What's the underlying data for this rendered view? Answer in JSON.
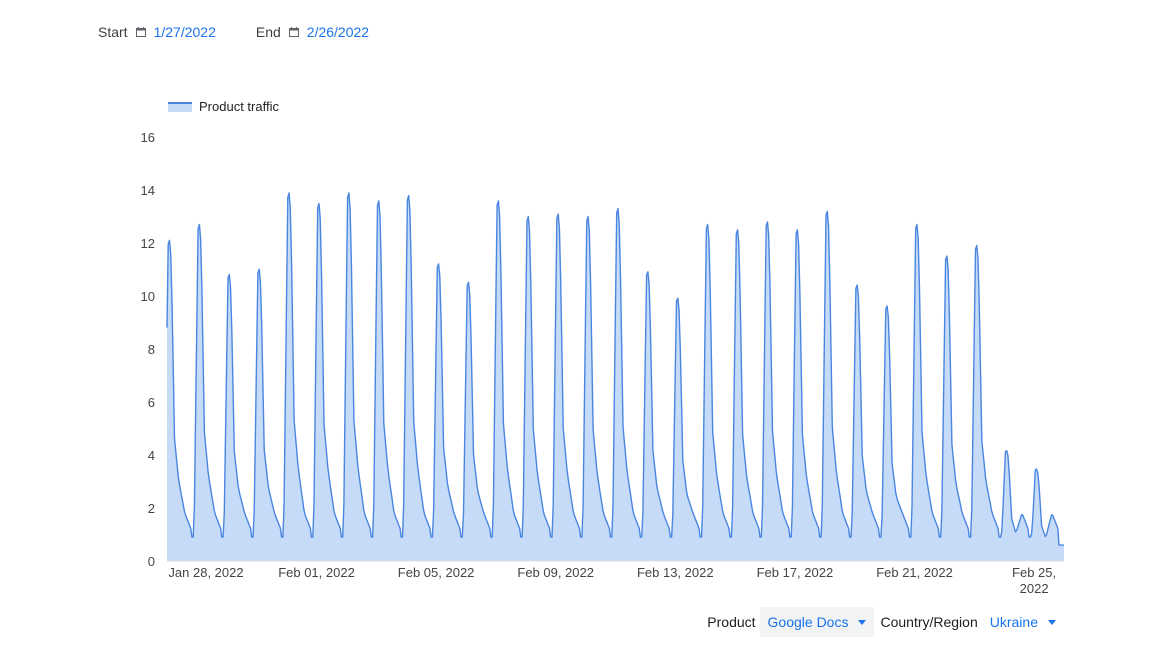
{
  "date_range": {
    "start_label": "Start",
    "start_value": "1/27/2022",
    "end_label": "End",
    "end_value": "2/26/2022",
    "icon": "calendar-icon"
  },
  "filters": {
    "product_label": "Product",
    "product_value": "Google Docs",
    "region_label": "Country/Region",
    "region_value": "Ukraine"
  },
  "colors": {
    "line": "#4a86e0",
    "fill": "#c6dbf7",
    "link": "#1a73e8"
  },
  "chart_data": {
    "type": "area",
    "title": "",
    "xlabel": "",
    "ylabel": "",
    "x_start": "2022-01-27",
    "x_end": "2022-02-26",
    "ylim": [
      0,
      16
    ],
    "y_ticks": [
      "0",
      "2",
      "4",
      "6",
      "8",
      "10",
      "12",
      "14",
      "16"
    ],
    "x_ticks": [
      {
        "date": "2022-01-28",
        "label": "Jan 28, 2022"
      },
      {
        "date": "2022-02-01",
        "label": "Feb 01, 2022"
      },
      {
        "date": "2022-02-05",
        "label": "Feb 05, 2022"
      },
      {
        "date": "2022-02-09",
        "label": "Feb 09, 2022"
      },
      {
        "date": "2022-02-13",
        "label": "Feb 13, 2022"
      },
      {
        "date": "2022-02-17",
        "label": "Feb 17, 2022"
      },
      {
        "date": "2022-02-21",
        "label": "Feb 21, 2022"
      },
      {
        "date": "2022-02-25",
        "label": "Feb 25, 2022",
        "wrap": [
          "Feb 25,",
          "2022"
        ]
      }
    ],
    "legend": {
      "position": "top-left",
      "label": "Product traffic"
    },
    "grid": false,
    "series": [
      {
        "name": "Product traffic",
        "x_resolution": "hourly",
        "daily_peaks": [
          {
            "day": "2022-01-27",
            "peak": 12.2
          },
          {
            "day": "2022-01-28",
            "peak": 12.8
          },
          {
            "day": "2022-01-29",
            "peak": 10.9
          },
          {
            "day": "2022-01-30",
            "peak": 11.1
          },
          {
            "day": "2022-01-31",
            "peak": 14.0
          },
          {
            "day": "2022-02-01",
            "peak": 13.6
          },
          {
            "day": "2022-02-02",
            "peak": 14.0
          },
          {
            "day": "2022-02-03",
            "peak": 13.7
          },
          {
            "day": "2022-02-04",
            "peak": 13.9
          },
          {
            "day": "2022-02-05",
            "peak": 11.3
          },
          {
            "day": "2022-02-06",
            "peak": 10.6
          },
          {
            "day": "2022-02-07",
            "peak": 13.7
          },
          {
            "day": "2022-02-08",
            "peak": 13.1
          },
          {
            "day": "2022-02-09",
            "peak": 13.2
          },
          {
            "day": "2022-02-10",
            "peak": 13.1
          },
          {
            "day": "2022-02-11",
            "peak": 13.4
          },
          {
            "day": "2022-02-12",
            "peak": 11.0
          },
          {
            "day": "2022-02-13",
            "peak": 10.0
          },
          {
            "day": "2022-02-14",
            "peak": 12.8
          },
          {
            "day": "2022-02-15",
            "peak": 12.6
          },
          {
            "day": "2022-02-16",
            "peak": 12.9
          },
          {
            "day": "2022-02-17",
            "peak": 12.6
          },
          {
            "day": "2022-02-18",
            "peak": 13.3
          },
          {
            "day": "2022-02-19",
            "peak": 10.5
          },
          {
            "day": "2022-02-20",
            "peak": 9.7
          },
          {
            "day": "2022-02-21",
            "peak": 12.8
          },
          {
            "day": "2022-02-22",
            "peak": 11.6
          },
          {
            "day": "2022-02-23",
            "peak": 12.0
          },
          {
            "day": "2022-02-24",
            "peak": 4.2
          },
          {
            "day": "2022-02-25",
            "peak": 3.5
          }
        ],
        "baseline_trough": 0.8,
        "end_value": 0.6
      }
    ]
  }
}
